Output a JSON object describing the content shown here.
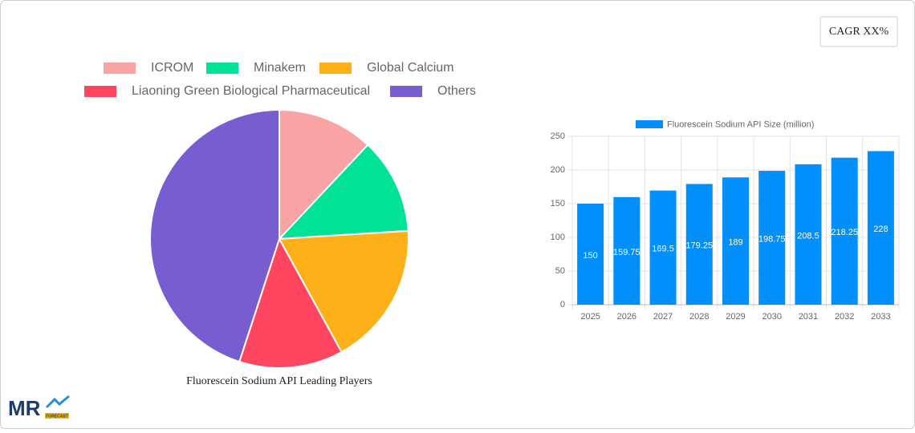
{
  "cagr_label": "CAGR XX%",
  "logo": {
    "text": "MR",
    "tagline": "FORECAST"
  },
  "chart_data": [
    {
      "type": "pie",
      "title": "Fluorescein Sodium API Leading Players",
      "categories": [
        "ICROM",
        "Minakem",
        "Global Calcium",
        "Liaoning Green Biological Pharmaceutical",
        "Others"
      ],
      "values": [
        12,
        12,
        18,
        13,
        45
      ],
      "colors": [
        "#f9a3a4",
        "#00e396",
        "#feb019",
        "#ff4560",
        "#775dd0"
      ]
    },
    {
      "type": "bar",
      "categories": [
        "2025",
        "2026",
        "2027",
        "2028",
        "2029",
        "2030",
        "2031",
        "2032",
        "2033"
      ],
      "series": [
        {
          "name": "Fluorescein Sodium API Size (million)",
          "color": "#008ffb",
          "values": [
            150,
            159.75,
            169.5,
            179.25,
            189,
            198.75,
            208.5,
            218.25,
            228
          ]
        }
      ],
      "ylim": [
        0,
        250
      ],
      "yticks": [
        0,
        50,
        100,
        150,
        200,
        250
      ],
      "grid": true
    }
  ]
}
